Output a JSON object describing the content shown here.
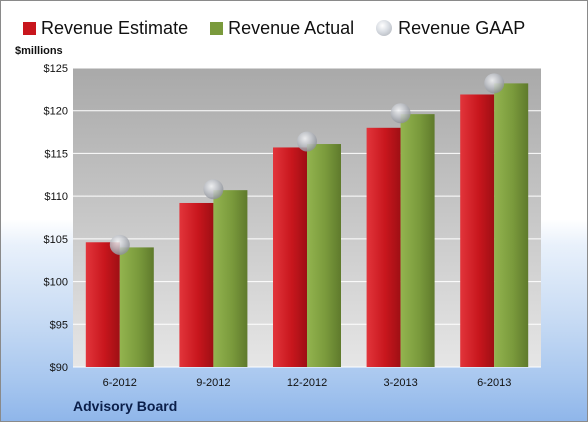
{
  "legend": {
    "estimate": "Revenue Estimate",
    "actual": "Revenue Actual",
    "gaap": "Revenue GAAP"
  },
  "unit_label": "$millions",
  "footer": "Advisory Board",
  "colors": {
    "estimate": "#c8161d",
    "actual": "#7a9a3c",
    "gaap": "#b9bcc2"
  },
  "chart_data": {
    "type": "bar",
    "categories": [
      "6-2012",
      "9-2012",
      "12-2012",
      "3-2013",
      "6-2013"
    ],
    "series": [
      {
        "name": "Revenue Estimate",
        "values": [
          104.6,
          109.2,
          115.7,
          118.0,
          121.9
        ]
      },
      {
        "name": "Revenue Actual",
        "values": [
          104.0,
          110.7,
          116.1,
          119.6,
          123.2
        ]
      },
      {
        "name": "Revenue GAAP",
        "values": [
          104.3,
          110.8,
          116.4,
          119.7,
          123.2
        ]
      }
    ],
    "ylabel": "$millions",
    "ylim": [
      90,
      125
    ],
    "yticks": [
      "$90",
      "$95",
      "$100",
      "$105",
      "$110",
      "$115",
      "$120",
      "$125"
    ],
    "grid": true,
    "legend_position": "top"
  }
}
